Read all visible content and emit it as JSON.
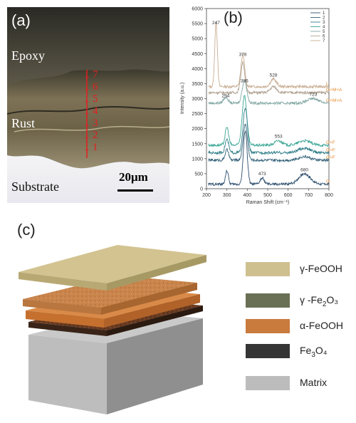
{
  "panel_a": {
    "letter": "(a)",
    "labels": {
      "epoxy": "Epoxy",
      "rust": "Rust",
      "substrate": "Substrate"
    },
    "scale_bar": "20μm",
    "points": [
      "1",
      "2",
      "3",
      "4",
      "5",
      "6",
      "7"
    ],
    "colors": {
      "epoxy": "#5d5848",
      "rust": "#7e7256",
      "substrate": "#9a8f73",
      "marker": "#e02020"
    }
  },
  "panel_b": {
    "letter": "(b)",
    "chart_data": {
      "type": "line",
      "xlabel": "Raman Shift (cm⁻¹)",
      "ylabel": "Intensity (a.u.)",
      "xlim": [
        200,
        800
      ],
      "ylim": [
        0,
        6000
      ],
      "xticks": [
        200,
        300,
        400,
        500,
        600,
        700,
        800
      ],
      "yticks": [
        0,
        500,
        1000,
        1500,
        2000,
        2500,
        3000,
        3500,
        4000,
        4500,
        5000,
        5500,
        6000
      ],
      "grid": false,
      "legend_position": "top-right",
      "legend_entries": [
        "1",
        "2",
        "3",
        "4",
        "5",
        "6",
        "7"
      ],
      "series": [
        {
          "name": "7",
          "color": "#c9ad93",
          "baseline": 3400,
          "peaks": [
            [
              247,
              2150,
              9
            ],
            [
              378,
              1050,
              13
            ],
            [
              528,
              250,
              20
            ]
          ]
        },
        {
          "name": "6",
          "color": "#b1a393",
          "baseline": 3200,
          "peaks": [
            [
              378,
              1000,
              14
            ],
            [
              528,
              200,
              22
            ]
          ]
        },
        {
          "name": "5",
          "color": "#86aaa6",
          "baseline": 2850,
          "peaks": [
            [
              294,
              200,
              15
            ],
            [
              386,
              750,
              16
            ],
            [
              723,
              150,
              40
            ]
          ]
        },
        {
          "name": "4",
          "color": "#3aa594",
          "baseline": 1450,
          "peaks": [
            [
              300,
              600,
              12
            ],
            [
              386,
              1650,
              16
            ],
            [
              553,
              150,
              25
            ],
            [
              680,
              150,
              40
            ]
          ]
        },
        {
          "name": "3",
          "color": "#2f7d88",
          "baseline": 1200,
          "peaks": [
            [
              300,
              450,
              12
            ],
            [
              390,
              1500,
              15
            ],
            [
              680,
              150,
              40
            ]
          ]
        },
        {
          "name": "2",
          "color": "#35627a",
          "baseline": 950,
          "peaks": [
            [
              300,
              350,
              12
            ],
            [
              390,
              1200,
              15
            ],
            [
              680,
              120,
              40
            ]
          ]
        },
        {
          "name": "1",
          "color": "#2f4f6e",
          "baseline": 150,
          "peaks": [
            [
              300,
              450,
              10
            ],
            [
              390,
              1800,
              13
            ],
            [
              473,
              200,
              14
            ],
            [
              680,
              350,
              40
            ]
          ]
        }
      ],
      "peak_labels": [
        {
          "text": "247",
          "x": 247,
          "y": 5480
        },
        {
          "text": "378",
          "x": 378,
          "y": 4420
        },
        {
          "text": "528",
          "x": 528,
          "y": 3740
        },
        {
          "text": "386",
          "x": 386,
          "y": 3550
        },
        {
          "text": "294",
          "x": 294,
          "y": 3050
        },
        {
          "text": "723",
          "x": 723,
          "y": 3100
        },
        {
          "text": "553",
          "x": 553,
          "y": 1700
        },
        {
          "text": "473",
          "x": 473,
          "y": 450
        },
        {
          "text": "680",
          "x": 680,
          "y": 580
        }
      ],
      "phase_labels": [
        {
          "text": "L",
          "y": 3400
        },
        {
          "text": "G+M+A",
          "y": 3200
        },
        {
          "text": "G+M+A",
          "y": 2850
        },
        {
          "text": "G+F",
          "y": 1450
        },
        {
          "text": "G+F",
          "y": 1200
        },
        {
          "text": "G+F",
          "y": 950
        },
        {
          "text": "G",
          "y": 150
        }
      ],
      "phase_label_color": "#e58a2e"
    }
  },
  "panel_c": {
    "letter": "(c)",
    "legend": [
      {
        "key": "g_feooh",
        "label_main": "γ-FeOOH",
        "label_sub": "",
        "label_rest": "",
        "color": "#cfc08f"
      },
      {
        "key": "g_fe2o3",
        "label_main": "γ -Fe",
        "label_sub": "2",
        "label_rest": "O₃",
        "color": "#6a7055"
      },
      {
        "key": "a_feooh",
        "label_main": "α-FeOOH",
        "label_sub": "",
        "label_rest": "",
        "color": "#c97a3d"
      },
      {
        "key": "fe3o4",
        "label_main": "Fe",
        "label_sub": "3",
        "label_rest": "O₄",
        "color": "#353535"
      },
      {
        "key": "matrix",
        "label_main": "Matrix",
        "label_sub": "",
        "label_rest": "",
        "color": "#bcbcbc"
      }
    ]
  }
}
